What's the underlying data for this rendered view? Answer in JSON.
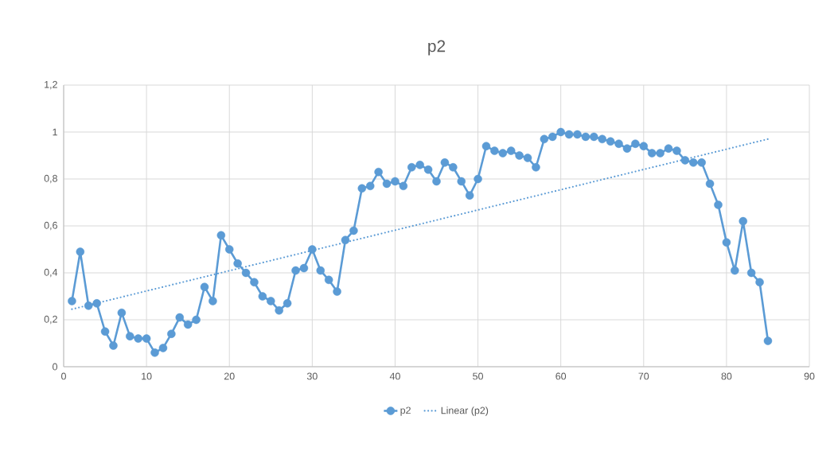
{
  "chart_data": {
    "type": "line",
    "title": "p2",
    "xlim": [
      0,
      90
    ],
    "xticks": [
      0,
      10,
      20,
      30,
      40,
      50,
      60,
      70,
      80,
      90
    ],
    "ylim": [
      0,
      1.2
    ],
    "yticks": [
      0,
      {
        "value": 0.2,
        "label": "0,2"
      },
      {
        "value": 0.4,
        "label": "0,4"
      },
      {
        "value": 0.6,
        "label": "0,6"
      },
      {
        "value": 0.8,
        "label": "0,8"
      },
      1,
      {
        "value": 1.2,
        "label": "1,2"
      }
    ],
    "grid": true,
    "legend": "bottom",
    "marker": "circle",
    "line_style": "solid",
    "x": [
      1,
      2,
      3,
      4,
      5,
      6,
      7,
      8,
      9,
      10,
      11,
      12,
      13,
      14,
      15,
      16,
      17,
      18,
      19,
      20,
      21,
      22,
      23,
      24,
      25,
      26,
      27,
      28,
      29,
      30,
      31,
      32,
      33,
      34,
      35,
      36,
      37,
      38,
      39,
      40,
      41,
      42,
      43,
      44,
      45,
      46,
      47,
      48,
      49,
      50,
      51,
      52,
      53,
      54,
      55,
      56,
      57,
      58,
      59,
      60,
      61,
      62,
      63,
      64,
      65,
      66,
      67,
      68,
      69,
      70,
      71,
      72,
      73,
      74,
      75,
      76,
      77,
      78,
      79,
      80,
      81,
      82,
      83,
      84,
      85
    ],
    "series": [
      {
        "name": "p2",
        "color": "#5b9bd5",
        "values": [
          0.28,
          0.49,
          0.26,
          0.27,
          0.15,
          0.09,
          0.23,
          0.13,
          0.12,
          0.12,
          0.06,
          0.08,
          0.14,
          0.21,
          0.18,
          0.2,
          0.34,
          0.28,
          0.56,
          0.5,
          0.44,
          0.4,
          0.36,
          0.3,
          0.28,
          0.24,
          0.27,
          0.41,
          0.42,
          0.5,
          0.41,
          0.37,
          0.32,
          0.54,
          0.58,
          0.76,
          0.77,
          0.83,
          0.78,
          0.79,
          0.77,
          0.85,
          0.86,
          0.84,
          0.79,
          0.87,
          0.85,
          0.79,
          0.73,
          0.8,
          0.94,
          0.92,
          0.91,
          0.92,
          0.9,
          0.89,
          0.85,
          0.97,
          0.98,
          1.0,
          0.99,
          0.99,
          0.98,
          0.98,
          0.97,
          0.96,
          0.95,
          0.93,
          0.95,
          0.94,
          0.91,
          0.91,
          0.93,
          0.92,
          0.88,
          0.87,
          0.87,
          0.78,
          0.69,
          0.53,
          0.41,
          0.62,
          0.4,
          0.36,
          0.11
        ]
      },
      {
        "name": "Linear (p2)",
        "type": "line",
        "color": "#5b9bd5",
        "x": [
          1,
          85
        ],
        "values": [
          0.245,
          0.97
        ],
        "marker": "none",
        "line_style": "dotted"
      }
    ]
  }
}
